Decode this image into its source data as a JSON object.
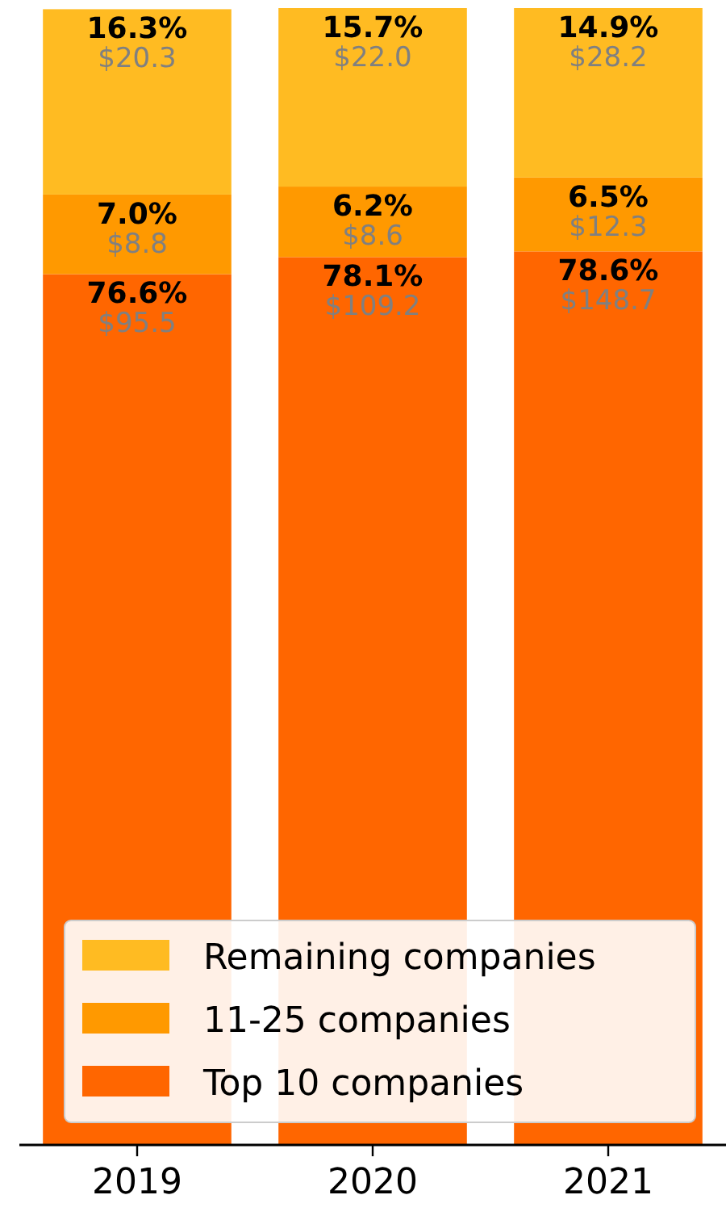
{
  "chart_data": {
    "type": "bar",
    "stacked": true,
    "categories": [
      "2019",
      "2020",
      "2021"
    ],
    "legend": "bottom",
    "data_labels": true,
    "series": [
      {
        "name": "Top 10 companies",
        "color": "#ff6600",
        "values": [
          76.6,
          78.1,
          78.6
        ],
        "value_labels": [
          "76.6%\n$95.5",
          "78.1%\n$109.2",
          "78.6%\n$148.7"
        ]
      },
      {
        "name": "11-25 companies",
        "color": "#ff9900",
        "values": [
          7.0,
          6.2,
          6.5
        ],
        "value_labels": [
          "7.0%\n$8.8",
          "6.2%\n$8.6",
          "6.5%\n$12.3"
        ]
      },
      {
        "name": "Remaining companies",
        "color": "#ffbb22",
        "values": [
          16.3,
          15.7,
          14.9
        ],
        "value_labels": [
          "16.3%\n$20.3",
          "15.7%\n$22.0",
          "14.9%\n$28.2"
        ]
      }
    ]
  }
}
